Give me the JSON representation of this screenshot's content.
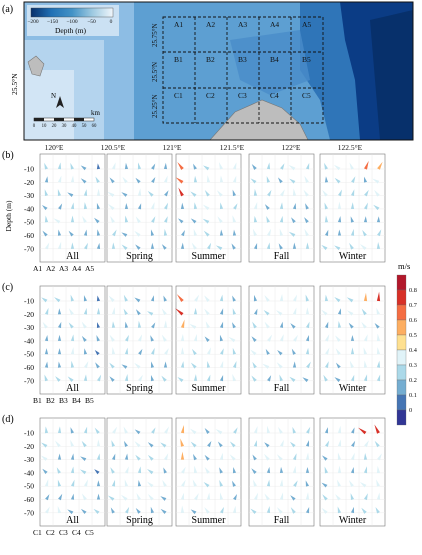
{
  "panel_labels": [
    "(a)",
    "(b)",
    "(c)",
    "(d)"
  ],
  "map": {
    "legend_title": "Depth (m)",
    "legend_ticks": [
      "−200",
      "−150",
      "−100",
      "−50",
      "0"
    ],
    "lon_ticks": [
      "120°E",
      "120.5°E",
      "121°E",
      "121.5°E",
      "122°E",
      "122.5°E"
    ],
    "lat_left": "25.5°N",
    "lat_inner": [
      "25.75°N",
      "25.5°N",
      "25.25°N"
    ],
    "north_label": "N",
    "scale_unit": "km",
    "scale_ticks": [
      "0",
      "10",
      "20",
      "30",
      "40",
      "50",
      "60"
    ],
    "grid_labels": [
      [
        "A1",
        "A2",
        "A3",
        "A4",
        "A5"
      ],
      [
        "B1",
        "B2",
        "B3",
        "B4",
        "B5"
      ],
      [
        "C1",
        "C2",
        "C3",
        "C4",
        "C5"
      ]
    ]
  },
  "panels": [
    {
      "label": "(b)",
      "row": "A",
      "station_labels": [
        "A1",
        "A2",
        "A3",
        "A4",
        "A5"
      ]
    },
    {
      "label": "(c)",
      "row": "B",
      "station_labels": [
        "B1",
        "B2",
        "B3",
        "B4",
        "B5"
      ]
    },
    {
      "label": "(d)",
      "row": "C",
      "station_labels": [
        "C1",
        "C2",
        "C3",
        "C4",
        "C5"
      ]
    }
  ],
  "season_labels": [
    "All",
    "Spring",
    "Summer",
    "Fall",
    "Winter"
  ],
  "depth_ticks": [
    "-10",
    "-20",
    "-30",
    "-40",
    "-50",
    "-60",
    "-70"
  ],
  "depth_axis_label": "Depth (m)",
  "colorbar": {
    "unit": "m/s",
    "ticks": [
      "0.8",
      "0.7",
      "0.6",
      "0.5",
      "0.4",
      "0.3",
      "0.2",
      "0.1",
      "0"
    ],
    "colors": [
      "#b2182b",
      "#d73027",
      "#f46d43",
      "#fdae61",
      "#fee090",
      "#e0f3f8",
      "#abd9e9",
      "#74add1",
      "#4575b4",
      "#313695"
    ]
  },
  "chart_data": {
    "type": "vector-profile",
    "depths": [
      -10,
      -20,
      -30,
      -40,
      -50,
      -60,
      -70
    ],
    "seasons": [
      "All",
      "Spring",
      "Summer",
      "Fall",
      "Winter"
    ],
    "speed_range": [
      0,
      0.8
    ]
  }
}
